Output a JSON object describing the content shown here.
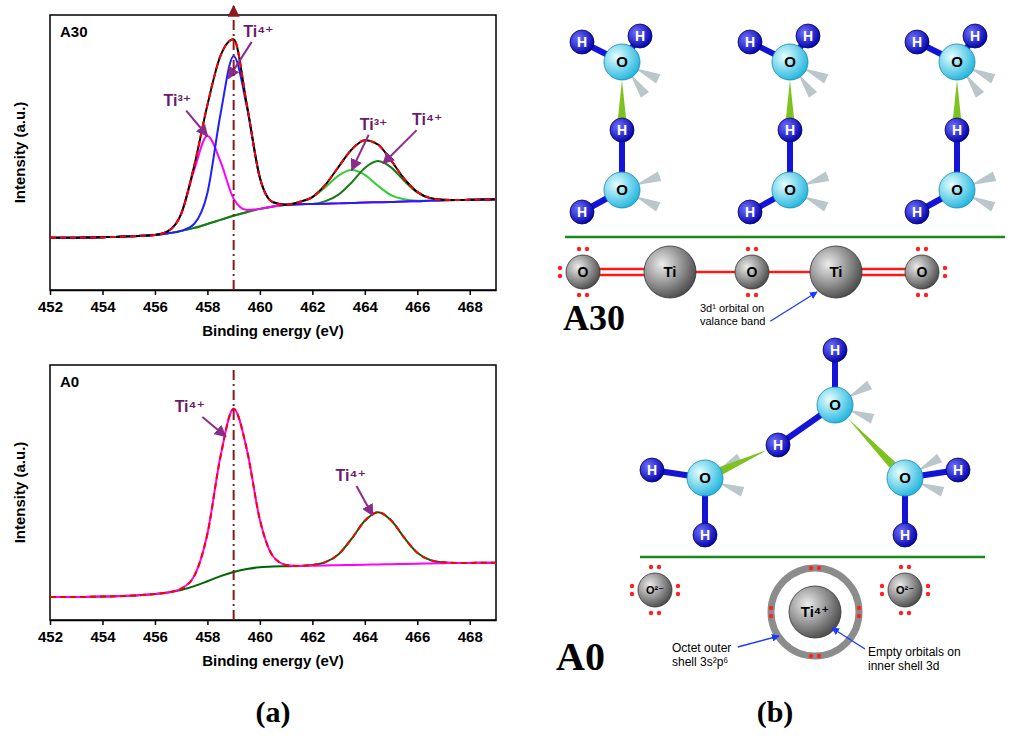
{
  "chart_data": [
    {
      "type": "line",
      "title": "A30",
      "xlabel": "Binding energy (eV)",
      "ylabel": "Intensity (a.u.)",
      "x": [
        452,
        452.5,
        453,
        453.5,
        454,
        454.5,
        455,
        455.5,
        456,
        456.5,
        457,
        457.5,
        458,
        458.5,
        459,
        459.5,
        460,
        460.5,
        461,
        461.5,
        462,
        462.5,
        463,
        463.5,
        464,
        464.5,
        465,
        465.5,
        466,
        466.5,
        467,
        467.5,
        468,
        468.5,
        469
      ],
      "xlim": [
        452,
        469
      ],
      "xticks": [
        452,
        454,
        456,
        458,
        460,
        462,
        464,
        466,
        468
      ],
      "ylim": [
        0,
        100
      ],
      "tick_labels": "x",
      "series": [
        {
          "color": "#33cc33",
          "line_style": "solid",
          "values": [
            19,
            19,
            19,
            19.1,
            19.2,
            19.3,
            19.5,
            19.7,
            20,
            20.6,
            21.5,
            22.6,
            24,
            25.5,
            27,
            28.3,
            29.5,
            30.4,
            31,
            32,
            33.8,
            37.4,
            41.6,
            43.6,
            41.9,
            37.9,
            34.5,
            33,
            32.5,
            32.5,
            32.6,
            32.7,
            32.8,
            32.9,
            33
          ]
        },
        {
          "color": "#1a7a1a",
          "line_style": "solid",
          "values": [
            19,
            19,
            19,
            19.1,
            19.2,
            19.3,
            19.5,
            19.7,
            20,
            20.6,
            21.5,
            22.6,
            24,
            25.5,
            27,
            28.3,
            29.5,
            30.4,
            31,
            31.2,
            31.3,
            32.3,
            34.7,
            39.1,
            44.4,
            46.9,
            44.6,
            39.7,
            35.5,
            33.4,
            32.8,
            32.7,
            32.8,
            32.9,
            33
          ]
        },
        {
          "color": "#ff00ff",
          "line_style": "solid",
          "values": [
            19,
            19,
            19,
            19.1,
            19.2,
            19.3,
            19.5,
            19.7,
            20,
            21.4,
            27.7,
            43.8,
            56,
            46.7,
            33.2,
            29.1,
            29.5,
            30.4,
            31,
            31.2,
            31.3,
            31.4,
            31.5,
            31.6,
            31.8,
            31.9,
            32,
            32.2,
            32.3,
            32.5,
            32.6,
            32.7,
            32.8,
            32.9,
            33
          ]
        },
        {
          "color": "#1e1eff",
          "line_style": "solid",
          "values": [
            19,
            19,
            19,
            19.1,
            19.2,
            19.3,
            19.5,
            19.7,
            20,
            20.6,
            21.5,
            24.1,
            35.3,
            64,
            85,
            66.8,
            40.8,
            31.9,
            31,
            31.2,
            31.3,
            31.4,
            31.5,
            31.6,
            31.8,
            31.9,
            32,
            32.2,
            32.3,
            32.5,
            32.6,
            32.7,
            32.8,
            32.9,
            33
          ]
        },
        {
          "color": "#000000",
          "line_style": "solid",
          "values": [
            19,
            19,
            19,
            19.1,
            19.2,
            19.3,
            19.5,
            19.7,
            20,
            21.4,
            27.7,
            45.3,
            67.3,
            85.2,
            91.2,
            67.6,
            40.8,
            31.9,
            31,
            32,
            33.8,
            38.3,
            44.8,
            51.1,
            54.5,
            52.9,
            47.1,
            40.5,
            35.7,
            33.4,
            32.8,
            32.7,
            32.8,
            32.9,
            33
          ]
        },
        {
          "color": "#ff0000",
          "line_style": "dashed",
          "values": [
            19,
            19,
            19,
            19.1,
            19.2,
            19.3,
            19.5,
            19.7,
            20,
            21.4,
            27.7,
            45.3,
            67.3,
            85.2,
            91.2,
            67.6,
            40.8,
            31.9,
            31,
            32,
            33.8,
            38.3,
            44.8,
            51.1,
            54.5,
            52.9,
            47.1,
            40.5,
            35.7,
            33.4,
            32.8,
            32.7,
            32.8,
            32.9,
            33
          ]
        }
      ],
      "annotations": [
        {
          "text": "Ti³⁺",
          "x": 458,
          "y": 56
        },
        {
          "text": "Ti⁴⁺",
          "x": 458.8,
          "y": 77
        },
        {
          "text": "Ti³⁺",
          "x": 463.5,
          "y": 43.6
        },
        {
          "text": "Ti⁴⁺",
          "x": 464.7,
          "y": 46
        }
      ],
      "reference_x": 459
    },
    {
      "type": "line",
      "title": "A0",
      "xlabel": "Binding energy (eV)",
      "ylabel": "Intensity (a.u.)",
      "x": [
        452,
        452.5,
        453,
        453.5,
        454,
        454.5,
        455,
        455.5,
        456,
        456.5,
        457,
        457.5,
        458,
        458.5,
        459,
        459.5,
        460,
        460.5,
        461,
        461.5,
        462,
        462.5,
        463,
        463.5,
        464,
        464.5,
        465,
        465.5,
        466,
        466.5,
        467,
        467.5,
        468,
        468.5,
        469
      ],
      "xlim": [
        452,
        469
      ],
      "xticks": [
        452,
        454,
        456,
        458,
        460,
        462,
        464,
        466,
        468
      ],
      "ylim": [
        0,
        100
      ],
      "tick_labels": "x",
      "series": [
        {
          "color": "#006400",
          "line_style": "solid",
          "values": [
            9,
            9,
            9,
            9.1,
            9.2,
            9.3,
            9.5,
            9.8,
            10.2,
            10.8,
            11.8,
            13.3,
            15.2,
            17.2,
            18.8,
            20,
            20.7,
            21,
            21.1,
            21.2,
            21.6,
            22.7,
            25.8,
            31.9,
            38.9,
            42.3,
            39.1,
            32.3,
            26.4,
            23.5,
            22.6,
            22.4,
            22.4,
            22.5,
            22.5
          ]
        },
        {
          "color": "#ff00ff",
          "line_style": "solid",
          "values": [
            9,
            9,
            9,
            9.1,
            9.2,
            9.3,
            9.5,
            9.8,
            10.2,
            10.8,
            12.3,
            17.3,
            33.8,
            64.2,
            82.8,
            67,
            39.3,
            25,
            21.6,
            21.2,
            21.3,
            21.4,
            21.5,
            21.6,
            21.7,
            21.8,
            21.9,
            22,
            22.1,
            22.2,
            22.3,
            22.4,
            22.4,
            22.5,
            22.5
          ]
        },
        {
          "color": "#ff0000",
          "line_style": "dashed",
          "values": [
            9,
            9,
            9,
            9.1,
            9.2,
            9.3,
            9.5,
            9.8,
            10.2,
            10.8,
            12.3,
            17.3,
            33.8,
            64.2,
            82.8,
            67,
            39.3,
            25,
            21.6,
            21.2,
            21.6,
            22.7,
            25.8,
            31.9,
            38.9,
            42.3,
            39.1,
            32.3,
            26.4,
            23.5,
            22.6,
            22.4,
            22.4,
            22.5,
            22.5
          ]
        }
      ],
      "annotations": [
        {
          "text": "Ti⁴⁺",
          "x": 458.7,
          "y": 72
        },
        {
          "text": "Ti⁴⁺",
          "x": 464.3,
          "y": 41
        }
      ]
    }
  ],
  "panel_labels": [
    "(a)",
    "(b)"
  ],
  "diagram": {
    "panels": [
      {
        "label": "A30",
        "molecules": [
          {
            "atoms": [
              "H",
              "H",
              "O",
              "H",
              "O",
              "H"
            ]
          },
          {
            "atoms": [
              "H",
              "H",
              "O",
              "H",
              "O",
              "H"
            ]
          },
          {
            "atoms": [
              "H",
              "H",
              "O",
              "H",
              "O",
              "H"
            ]
          }
        ],
        "surface": [
          "O",
          "Ti",
          "O",
          "Ti",
          "O"
        ],
        "notes": [
          "3d¹ orbital on valance band"
        ]
      },
      {
        "label": "A0",
        "molecules": [
          {
            "atoms": [
              "H",
              "O",
              "H"
            ]
          },
          {
            "atoms": [
              "H",
              "O",
              "H"
            ]
          },
          {
            "atoms": [
              "H",
              "O",
              "H"
            ]
          }
        ],
        "surface": [
          "O²⁻",
          "Ti⁴⁺",
          "O²⁻"
        ],
        "notes": [
          "Octet outer shell 3s²p⁶",
          "Empty orbitals on inner shell 3d"
        ]
      }
    ]
  }
}
